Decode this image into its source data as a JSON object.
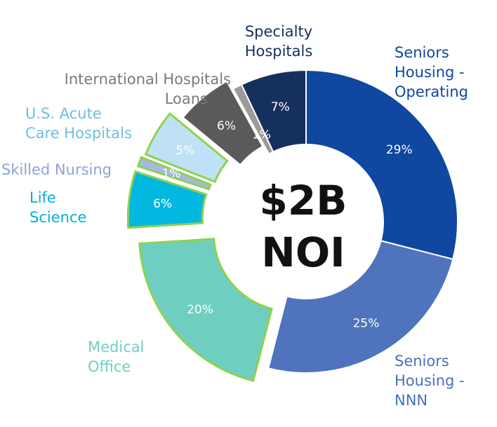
{
  "center": {
    "line1": "$2B",
    "line2": "NOI"
  },
  "chart_data": {
    "type": "pie",
    "title": "$2B NOI",
    "slices": [
      {
        "name": "Seniors Housing - Operating",
        "lines": [
          "Seniors",
          "Housing -",
          "Operating"
        ],
        "value": 29,
        "label": "29%",
        "color": "#0f47a1",
        "label_color": "#0f47a1",
        "pct_color": "#ffffff",
        "highlighted": false
      },
      {
        "name": "Seniors Housing - NNN",
        "lines": [
          "Seniors",
          "Housing -",
          "NNN"
        ],
        "value": 25,
        "label": "25%",
        "color": "#4f73bd",
        "label_color": "#4a6fbb",
        "pct_color": "#ffffff",
        "highlighted": false
      },
      {
        "name": "Medical Office",
        "lines": [
          "Medical",
          "Office"
        ],
        "value": 20,
        "label": "20%",
        "color": "#6ecfc0",
        "label_color": "#6ecfc0",
        "pct_color": "#ffffff",
        "highlighted": true
      },
      {
        "name": "Life Science",
        "lines": [
          "Life",
          "Science"
        ],
        "value": 6,
        "label": "6%",
        "color": "#00b8e0",
        "label_color": "#00b0db",
        "pct_color": "#ffffff",
        "highlighted": true
      },
      {
        "name": "Skilled Nursing",
        "lines": [
          "Skilled Nursing"
        ],
        "value": 1,
        "label": "1%",
        "color": "#a6b8e2",
        "label_color": "#8ea3d6",
        "pct_color": "#ffffff",
        "highlighted": true
      },
      {
        "name": "U.S. Acute Care Hospitals",
        "lines": [
          "U.S. Acute",
          "Care Hospitals"
        ],
        "value": 5,
        "label": "5%",
        "color": "#bfe1f6",
        "label_color": "#6cc0e6",
        "pct_color": "#333333",
        "highlighted": true
      },
      {
        "name": "International Hospitals",
        "lines": [
          "International Hospitals"
        ],
        "value": 6,
        "label": "6%",
        "color": "#5a5a5a",
        "label_color": "#7a7a7a",
        "pct_color": "#ffffff",
        "highlighted": false
      },
      {
        "name": "Loans",
        "lines": [
          "Loans"
        ],
        "value": 1,
        "label": "1%",
        "color": "#9a9a9a",
        "label_color": "#7a7a7a",
        "pct_color": "#ffffff",
        "highlighted": false
      },
      {
        "name": "Specialty Hospitals",
        "lines": [
          "Specialty",
          "Hospitals"
        ],
        "value": 7,
        "label": "7%",
        "color": "#16305e",
        "label_color": "#16305e",
        "pct_color": "#ffffff",
        "highlighted": false
      }
    ],
    "highlight_outline_color": "#8fd14f"
  }
}
